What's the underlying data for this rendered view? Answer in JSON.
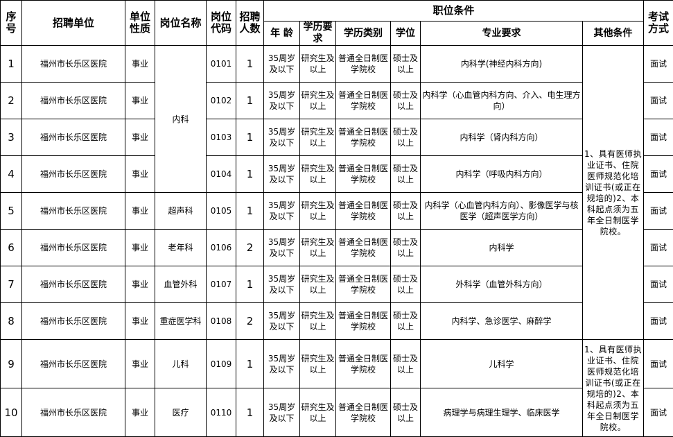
{
  "headers": {
    "seq": "序号",
    "unit": "招聘单位",
    "nature": "单位性质",
    "post_name": "岗位名称",
    "post_code": "岗位代码",
    "count": "招聘人数",
    "conditions": "职位条件",
    "age": "年 龄",
    "edu_req": "学历要求",
    "edu_type": "学历类别",
    "degree": "学位",
    "major": "专业要求",
    "other": "其他条件",
    "exam": "考试方式"
  },
  "rows": [
    {
      "seq": "1",
      "unit": "福州市长乐区医院",
      "nature": "事业",
      "post_name": "内科",
      "code": "0101",
      "count": "1",
      "age": "35周岁及以下",
      "edu": "研究生及以上",
      "type": "普通全日制医学院校",
      "degree": "硕士及以上",
      "major": "内科学(神经内科方向)",
      "exam": "面试"
    },
    {
      "seq": "2",
      "unit": "福州市长乐区医院",
      "nature": "事业",
      "post_name": "",
      "code": "0102",
      "count": "1",
      "age": "35周岁及以下",
      "edu": "研究生及以上",
      "type": "普通全日制医学院校",
      "degree": "硕士及以上",
      "major": "内科学（心血管内科方向、介入、电生理方向）",
      "exam": "面试"
    },
    {
      "seq": "3",
      "unit": "福州市长乐区医院",
      "nature": "事业",
      "post_name": "",
      "code": "0103",
      "count": "1",
      "age": "35周岁及以下",
      "edu": "研究生及以上",
      "type": "普通全日制医学院校",
      "degree": "硕士及以上",
      "major": "内科学（肾内科方向）",
      "exam": "面试"
    },
    {
      "seq": "4",
      "unit": "福州市长乐区医院",
      "nature": "事业",
      "post_name": "",
      "code": "0104",
      "count": "1",
      "age": "35周岁及以下",
      "edu": "研究生及以上",
      "type": "普通全日制医学院校",
      "degree": "硕士及以上",
      "major": "内科学（呼吸内科方向）",
      "exam": "面试"
    },
    {
      "seq": "5",
      "unit": "福州市长乐区医院",
      "nature": "事业",
      "post_name": "超声科",
      "code": "0105",
      "count": "1",
      "age": "35周岁及以下",
      "edu": "研究生及以上",
      "type": "普通全日制医学院校",
      "degree": "硕士及以上",
      "major": "内科学（心血管内科方向）、影像医学与核医学（超声医学方向）",
      "exam": "面试"
    },
    {
      "seq": "6",
      "unit": "福州市长乐区医院",
      "nature": "事业",
      "post_name": "老年科",
      "code": "0106",
      "count": "2",
      "age": "35周岁及以下",
      "edu": "研究生及以上",
      "type": "普通全日制医学院校",
      "degree": "硕士及以上",
      "major": "内科学",
      "exam": "面试"
    },
    {
      "seq": "7",
      "unit": "福州市长乐区医院",
      "nature": "事业",
      "post_name": "血管外科",
      "code": "0107",
      "count": "1",
      "age": "35周岁及以下",
      "edu": "研究生及以上",
      "type": "普通全日制医学院校",
      "degree": "硕士及以上",
      "major": "外科学（血管外科方向）",
      "exam": "面试"
    },
    {
      "seq": "8",
      "unit": "福州市长乐区医院",
      "nature": "事业",
      "post_name": "重症医学科",
      "code": "0108",
      "count": "2",
      "age": "35周岁及以下",
      "edu": "研究生及以上",
      "type": "普通全日制医学院校",
      "degree": "硕士及以上",
      "major": "内科学、急诊医学、麻醉学",
      "exam": "面试"
    },
    {
      "seq": "9",
      "unit": "福州市长乐区医院",
      "nature": "事业",
      "post_name": "儿科",
      "code": "0109",
      "count": "1",
      "age": "35周岁及以下",
      "edu": "研究生及以上",
      "type": "普通全日制医学院校",
      "degree": "硕士及以上",
      "major": "儿科学",
      "exam": "面试"
    },
    {
      "seq": "10",
      "unit": "福州市长乐区医院",
      "nature": "事业",
      "post_name": "医疗",
      "code": "0110",
      "count": "1",
      "age": "35周岁及以下",
      "edu": "研究生及以上",
      "type": "普通全日制医学院校",
      "degree": "硕士及以上",
      "major": "病理学与病理生理学、临床医学",
      "exam": "面试"
    }
  ],
  "other_conditions": [
    "1、具有医师执业证书、住院医师规范化培训证书(或正在规培的)2、本科起点须为五年全日制医学院校。",
    "1、具有医师执业证书、住院医师规范化培训证书(或正在规培的)2、本科起点须为五年全日制医学院校。"
  ]
}
